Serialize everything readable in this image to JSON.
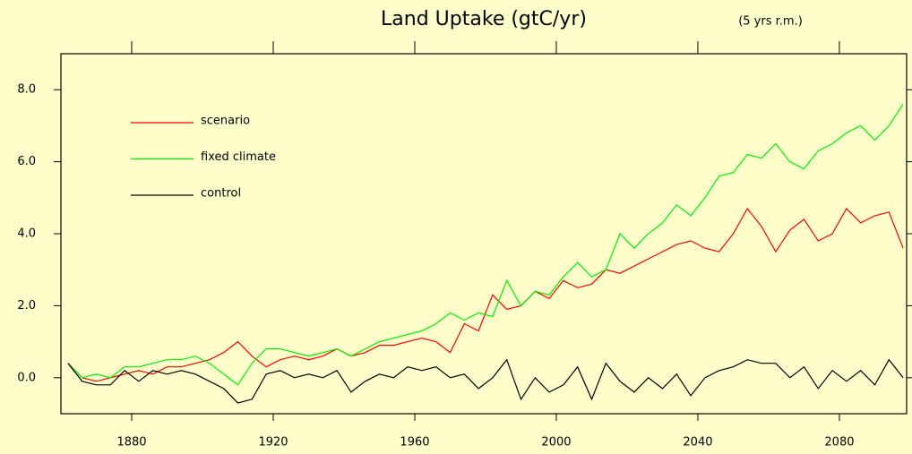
{
  "chart_data": {
    "type": "line",
    "title": "Land Uptake (gtC/yr)",
    "annotation": "(5 yrs r.m.)",
    "x": [
      1862,
      1866,
      1870,
      1874,
      1878,
      1882,
      1886,
      1890,
      1894,
      1898,
      1902,
      1906,
      1910,
      1914,
      1918,
      1922,
      1926,
      1930,
      1934,
      1938,
      1942,
      1946,
      1950,
      1954,
      1958,
      1962,
      1966,
      1970,
      1974,
      1978,
      1982,
      1986,
      1990,
      1994,
      1998,
      2002,
      2006,
      2010,
      2014,
      2018,
      2022,
      2026,
      2030,
      2034,
      2038,
      2042,
      2046,
      2050,
      2054,
      2058,
      2062,
      2066,
      2070,
      2074,
      2078,
      2082,
      2086,
      2090,
      2094,
      2098
    ],
    "series": [
      {
        "name": "scenario",
        "color": "#ff0000",
        "values": [
          0.4,
          0.0,
          -0.1,
          0.0,
          0.1,
          0.2,
          0.1,
          0.3,
          0.3,
          0.4,
          0.5,
          0.7,
          1.0,
          0.6,
          0.3,
          0.5,
          0.6,
          0.5,
          0.6,
          0.8,
          0.6,
          0.7,
          0.9,
          0.9,
          1.0,
          1.1,
          1.0,
          0.7,
          1.5,
          1.3,
          2.3,
          1.9,
          2.0,
          2.4,
          2.2,
          2.7,
          2.5,
          2.6,
          3.0,
          2.9,
          3.1,
          3.3,
          3.5,
          3.7,
          3.8,
          3.6,
          3.5,
          4.0,
          4.7,
          4.2,
          3.5,
          4.1,
          4.4,
          3.8,
          4.0,
          4.7,
          4.3,
          4.5,
          4.6,
          3.6
        ]
      },
      {
        "name": "fixed climate",
        "color": "#00ee00",
        "values": [
          0.4,
          0.0,
          0.1,
          0.0,
          0.3,
          0.3,
          0.4,
          0.5,
          0.5,
          0.6,
          0.4,
          0.1,
          -0.2,
          0.4,
          0.8,
          0.8,
          0.7,
          0.6,
          0.7,
          0.8,
          0.6,
          0.8,
          1.0,
          1.1,
          1.2,
          1.3,
          1.5,
          1.8,
          1.6,
          1.8,
          1.7,
          2.7,
          2.0,
          2.4,
          2.3,
          2.8,
          3.2,
          2.8,
          3.0,
          4.0,
          3.6,
          4.0,
          4.3,
          4.8,
          4.5,
          5.0,
          5.6,
          5.7,
          6.2,
          6.1,
          6.5,
          6.0,
          5.8,
          6.3,
          6.5,
          6.8,
          7.0,
          6.6,
          7.0,
          7.6
        ]
      },
      {
        "name": "control",
        "color": "#000000",
        "values": [
          0.4,
          -0.1,
          -0.2,
          -0.2,
          0.2,
          -0.1,
          0.2,
          0.1,
          0.2,
          0.1,
          -0.1,
          -0.3,
          -0.7,
          -0.6,
          0.1,
          0.2,
          0.0,
          0.1,
          0.0,
          0.2,
          -0.4,
          -0.1,
          0.1,
          0.0,
          0.3,
          0.2,
          0.3,
          0.0,
          0.1,
          -0.3,
          0.0,
          0.5,
          -0.6,
          0.0,
          -0.4,
          -0.2,
          0.3,
          -0.6,
          0.4,
          -0.1,
          -0.4,
          0.0,
          -0.3,
          0.1,
          -0.5,
          0.0,
          0.2,
          0.3,
          0.5,
          0.4,
          0.4,
          0.0,
          0.3,
          -0.3,
          0.2,
          -0.1,
          0.2,
          -0.2,
          0.5,
          0.0
        ]
      }
    ],
    "xlim": [
      1860,
      2099
    ],
    "ylim": [
      -1,
      9
    ],
    "xticks": [
      1880,
      1920,
      1960,
      2000,
      2040,
      2080
    ],
    "yticks": [
      {
        "value": 0,
        "label": "0.0"
      },
      {
        "value": 2,
        "label": "2.0"
      },
      {
        "value": 4,
        "label": "4.0"
      },
      {
        "value": 6,
        "label": "6.0"
      },
      {
        "value": 8,
        "label": "8.0"
      }
    ],
    "legend": "upper left",
    "grid": false
  }
}
